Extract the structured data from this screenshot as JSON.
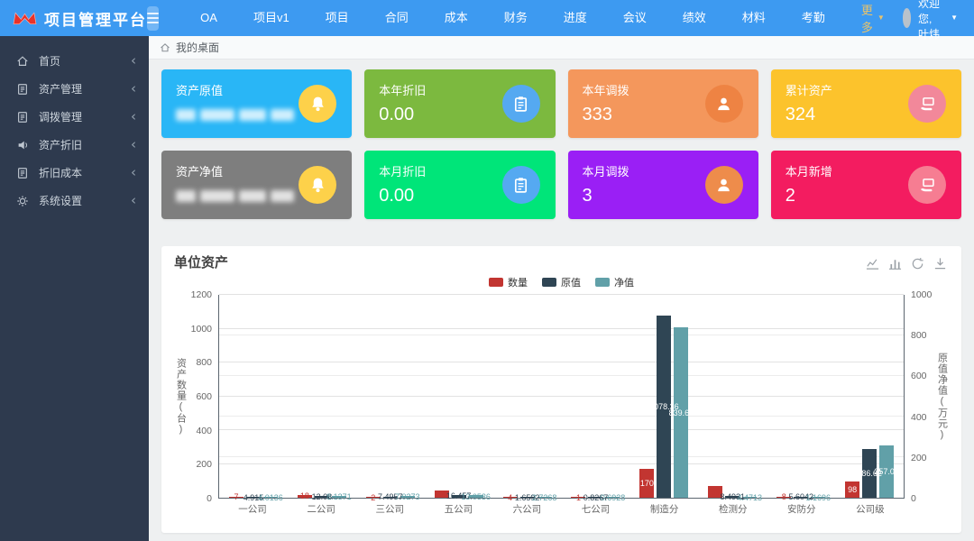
{
  "topbar": {
    "brand": "项目管理平台",
    "logo_icon": "butterfly-logo-icon",
    "nav": [
      {
        "label": "OA"
      },
      {
        "label": "项目v1"
      },
      {
        "label": "项目"
      },
      {
        "label": "合同"
      },
      {
        "label": "成本"
      },
      {
        "label": "财务"
      },
      {
        "label": "进度"
      },
      {
        "label": "会议"
      },
      {
        "label": "绩效"
      },
      {
        "label": "材料"
      },
      {
        "label": "考勤"
      }
    ],
    "more_label": "更多",
    "more_color": "#e9c36b",
    "welcome": "欢迎您, 叶炜"
  },
  "sidebar": {
    "items": [
      {
        "label": "首页",
        "icon": "home-icon"
      },
      {
        "label": "资产管理",
        "icon": "document-icon"
      },
      {
        "label": "调拨管理",
        "icon": "document-icon"
      },
      {
        "label": "资产折旧",
        "icon": "speaker-icon"
      },
      {
        "label": "折旧成本",
        "icon": "document-icon"
      },
      {
        "label": "系统设置",
        "icon": "gear-icon"
      }
    ]
  },
  "breadcrumb": {
    "label": "我的桌面"
  },
  "cards": [
    {
      "title": "资产原值",
      "value": "",
      "masked": true,
      "bg": "#29b6f6",
      "icon": "bell-icon",
      "icon_bg": "#fdd14a"
    },
    {
      "title": "本年折旧",
      "value": "0.00",
      "masked": false,
      "bg": "#7cb93f",
      "icon": "clipboard-icon",
      "icon_bg": "#55a9f1"
    },
    {
      "title": "本年调拨",
      "value": "333",
      "masked": false,
      "bg": "#f4975c",
      "icon": "person-icon",
      "icon_bg": "#ee8343"
    },
    {
      "title": "累计资产",
      "value": "324",
      "masked": false,
      "bg": "#fcc32c",
      "icon": "monitor-icon",
      "icon_bg": "#f2889a"
    },
    {
      "title": "资产净值",
      "value": "",
      "masked": true,
      "bg": "#7e7e7e",
      "icon": "bell-icon",
      "icon_bg": "#fdd14a"
    },
    {
      "title": "本月折旧",
      "value": "0.00",
      "masked": false,
      "bg": "#00e579",
      "icon": "clipboard-icon",
      "icon_bg": "#55a9f1"
    },
    {
      "title": "本月调拨",
      "value": "3",
      "masked": false,
      "bg": "#9a1ff5",
      "icon": "person-icon",
      "icon_bg": "#ee8c4b"
    },
    {
      "title": "本月新增",
      "value": "2",
      "masked": false,
      "bg": "#f31c60",
      "icon": "monitor-icon",
      "icon_bg": "#f67d92"
    }
  ],
  "chart_data": {
    "type": "bar",
    "title": "单位资产",
    "categories": [
      "一公司",
      "二公司",
      "三公司",
      "五公司",
      "六公司",
      "七公司",
      "制造分",
      "检测分",
      "安防分",
      "公司级"
    ],
    "series": [
      {
        "name": "数量",
        "color": "#c23531",
        "axis": "left",
        "values": [
          7,
          18,
          2,
          44,
          4,
          1,
          170,
          69,
          8,
          98
        ]
      },
      {
        "name": "原值",
        "color": "#2f4554",
        "axis": "left",
        "values": [
          4.915,
          12.08,
          7.4957,
          16.457,
          1.6592,
          0.8267,
          1078.36,
          8.4931,
          5.6042,
          286.62
        ]
      },
      {
        "name": "净值",
        "color": "#61a0a8",
        "axis": "right",
        "values": [
          4.0136,
          8.1371,
          7.0273,
          13.0536,
          2.7268,
          0.6928,
          839.69,
          4.4713,
          1.1696,
          257.02
        ]
      }
    ],
    "left_axis": {
      "name": "资产数量(台)",
      "min": 0,
      "max": 1200,
      "ticks": [
        0,
        200,
        400,
        600,
        800,
        1000,
        1200
      ]
    },
    "right_axis": {
      "name": "原值净值(万元)",
      "min": 0,
      "max": 1000,
      "ticks": [
        0,
        200,
        400,
        600,
        800,
        1000
      ]
    },
    "legend_position": "top-center",
    "grid": true,
    "toolbox": [
      "line-chart-icon",
      "bar-chart-icon",
      "refresh-icon",
      "download-icon"
    ]
  }
}
